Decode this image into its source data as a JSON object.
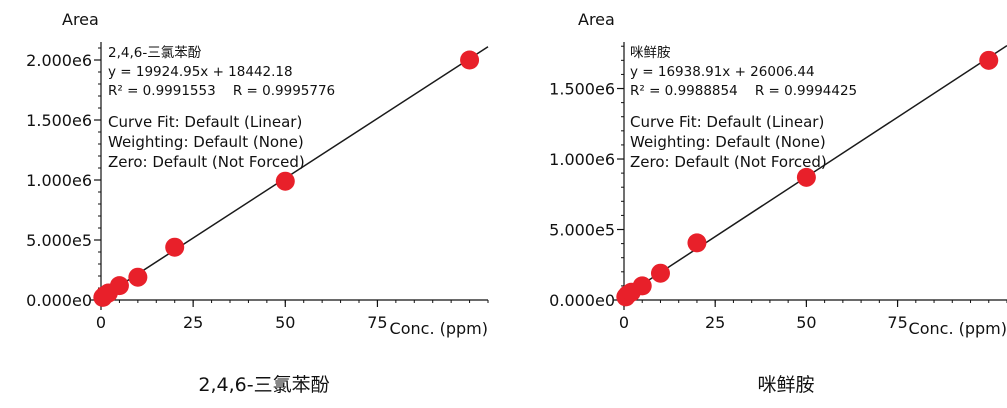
{
  "chart_data": [
    {
      "type": "scatter",
      "caption": "2,4,6-三氯苯酚",
      "ylabel": "Area",
      "xlabel": "Conc. (ppm)",
      "x_ticks": [
        "0",
        "25",
        "50",
        "75"
      ],
      "x_tick_values": [
        0,
        25,
        50,
        75
      ],
      "y_ticks": [
        "0.000e0",
        "5.000e5",
        "1.000e6",
        "1.500e6",
        "2.000e6"
      ],
      "y_tick_values": [
        0,
        500000,
        1000000,
        1500000,
        2000000
      ],
      "xlim": [
        0,
        105
      ],
      "ylim": [
        0,
        2150000
      ],
      "fit": {
        "slope": 19924.95,
        "intercept": 18442.18
      },
      "points": [
        {
          "x": 0.5,
          "y": 22000
        },
        {
          "x": 1,
          "y": 38000
        },
        {
          "x": 2,
          "y": 58000
        },
        {
          "x": 5,
          "y": 120000
        },
        {
          "x": 10,
          "y": 190000
        },
        {
          "x": 20,
          "y": 440000
        },
        {
          "x": 50,
          "y": 990000
        },
        {
          "x": 100,
          "y": 2000000
        }
      ],
      "annotation": {
        "compound": "2,4,6-三氯苯酚",
        "equation": "y = 19924.95x + 18442.18",
        "r_values": "R² = 0.9991553    R = 0.9995776",
        "curve_fit": "Curve Fit: Default (Linear)",
        "weighting": "Weighting: Default (None)",
        "zero": "Zero: Default (Not Forced)"
      },
      "marker_color": "#e8202a",
      "line_color": "#1a1a1a"
    },
    {
      "type": "scatter",
      "caption": "咪鲜胺",
      "ylabel": "Area",
      "xlabel": "Conc. (ppm)",
      "x_ticks": [
        "0",
        "25",
        "50",
        "75"
      ],
      "x_tick_values": [
        0,
        25,
        50,
        75
      ],
      "y_ticks": [
        "0.000e0",
        "5.000e5",
        "1.000e6",
        "1.500e6"
      ],
      "y_tick_values": [
        0,
        500000,
        1000000,
        1500000
      ],
      "xlim": [
        0,
        105
      ],
      "ylim": [
        0,
        1830000
      ],
      "fit": {
        "slope": 16938.91,
        "intercept": 26006.44
      },
      "points": [
        {
          "x": 0.5,
          "y": 22000
        },
        {
          "x": 1,
          "y": 38000
        },
        {
          "x": 2,
          "y": 55000
        },
        {
          "x": 5,
          "y": 100000
        },
        {
          "x": 10,
          "y": 190000
        },
        {
          "x": 20,
          "y": 405000
        },
        {
          "x": 50,
          "y": 870000
        },
        {
          "x": 100,
          "y": 1700000
        }
      ],
      "annotation": {
        "compound": "咪鲜胺",
        "equation": "y = 16938.91x + 26006.44",
        "r_values": "R² = 0.9988854    R = 0.9994425",
        "curve_fit": "Curve Fit: Default (Linear)",
        "weighting": "Weighting: Default (None)",
        "zero": "Zero: Default (Not Forced)"
      },
      "marker_color": "#e8202a",
      "line_color": "#1a1a1a"
    }
  ]
}
